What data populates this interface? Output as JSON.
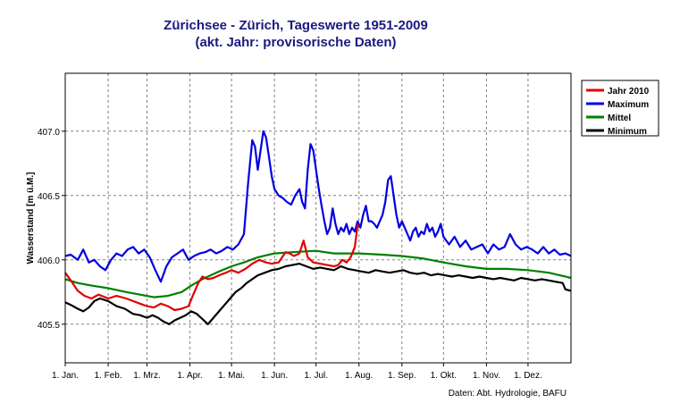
{
  "chart_data": {
    "type": "line",
    "title": "Zürichsee - Zürich, Tageswerte 1951-2009",
    "subtitle": "(akt. Jahr: provisorische Daten)",
    "xlabel": "",
    "ylabel": "Wasserstand [m ü.M.]",
    "ylim": [
      405.2,
      407.45
    ],
    "yticks": [
      405.5,
      406.0,
      406.5,
      407.0
    ],
    "ytick_labels": [
      "405.5",
      "406.0",
      "406.5",
      "407.0"
    ],
    "xlim": [
      1,
      366
    ],
    "x_unit": "day of year",
    "xticks": [
      1,
      32,
      60,
      91,
      121,
      152,
      182,
      213,
      244,
      274,
      305,
      335
    ],
    "xtick_labels": [
      "1. Jan.",
      "1. Feb.",
      "1. Mrz.",
      "1. Apr.",
      "1. Mai.",
      "1. Jun.",
      "1. Jul.",
      "1. Aug.",
      "1. Sep.",
      "1. Okt.",
      "1. Nov.",
      "1. Dez."
    ],
    "grid": true,
    "legend_position": "right",
    "source_note": "Daten: Abt. Hydrologie, BAFU",
    "series": [
      {
        "name": "Jahr 2010",
        "color": "#e00000",
        "points": [
          [
            1,
            405.9
          ],
          [
            5,
            405.84
          ],
          [
            10,
            405.76
          ],
          [
            15,
            405.72
          ],
          [
            20,
            405.7
          ],
          [
            25,
            405.73
          ],
          [
            32,
            405.7
          ],
          [
            38,
            405.72
          ],
          [
            45,
            405.7
          ],
          [
            50,
            405.68
          ],
          [
            55,
            405.66
          ],
          [
            60,
            405.64
          ],
          [
            65,
            405.63
          ],
          [
            70,
            405.66
          ],
          [
            75,
            405.64
          ],
          [
            80,
            405.61
          ],
          [
            85,
            405.62
          ],
          [
            90,
            405.64
          ],
          [
            93,
            405.72
          ],
          [
            97,
            405.82
          ],
          [
            100,
            405.87
          ],
          [
            104,
            405.85
          ],
          [
            108,
            405.86
          ],
          [
            112,
            405.88
          ],
          [
            117,
            405.9
          ],
          [
            121,
            405.92
          ],
          [
            126,
            405.9
          ],
          [
            131,
            405.93
          ],
          [
            136,
            405.97
          ],
          [
            141,
            406.0
          ],
          [
            146,
            405.98
          ],
          [
            150,
            405.97
          ],
          [
            155,
            405.98
          ],
          [
            160,
            406.06
          ],
          [
            163,
            406.05
          ],
          [
            166,
            406.03
          ],
          [
            170,
            406.05
          ],
          [
            173,
            406.15
          ],
          [
            176,
            406.02
          ],
          [
            180,
            405.98
          ],
          [
            185,
            405.97
          ],
          [
            190,
            405.96
          ],
          [
            195,
            405.95
          ],
          [
            198,
            405.96
          ],
          [
            201,
            406.0
          ],
          [
            204,
            405.98
          ],
          [
            207,
            406.02
          ],
          [
            210,
            406.1
          ],
          [
            212,
            406.27
          ],
          [
            213,
            406.25
          ]
        ]
      },
      {
        "name": "Maximum",
        "color": "#0000e0",
        "points": [
          [
            1,
            406.03
          ],
          [
            5,
            406.04
          ],
          [
            10,
            406.0
          ],
          [
            14,
            406.08
          ],
          [
            18,
            405.98
          ],
          [
            22,
            406.0
          ],
          [
            26,
            405.95
          ],
          [
            30,
            405.92
          ],
          [
            34,
            406.0
          ],
          [
            38,
            406.05
          ],
          [
            42,
            406.03
          ],
          [
            46,
            406.08
          ],
          [
            50,
            406.1
          ],
          [
            54,
            406.05
          ],
          [
            58,
            406.08
          ],
          [
            62,
            406.02
          ],
          [
            66,
            405.92
          ],
          [
            70,
            405.83
          ],
          [
            74,
            405.95
          ],
          [
            78,
            406.02
          ],
          [
            82,
            406.05
          ],
          [
            86,
            406.08
          ],
          [
            90,
            406.0
          ],
          [
            94,
            406.03
          ],
          [
            98,
            406.05
          ],
          [
            102,
            406.06
          ],
          [
            106,
            406.08
          ],
          [
            110,
            406.05
          ],
          [
            114,
            406.07
          ],
          [
            118,
            406.1
          ],
          [
            122,
            406.08
          ],
          [
            126,
            406.12
          ],
          [
            130,
            406.2
          ],
          [
            133,
            406.6
          ],
          [
            136,
            406.93
          ],
          [
            138,
            406.88
          ],
          [
            140,
            406.7
          ],
          [
            142,
            406.85
          ],
          [
            144,
            407.0
          ],
          [
            146,
            406.95
          ],
          [
            148,
            406.8
          ],
          [
            150,
            406.65
          ],
          [
            152,
            406.55
          ],
          [
            155,
            406.5
          ],
          [
            158,
            406.48
          ],
          [
            161,
            406.45
          ],
          [
            164,
            406.43
          ],
          [
            167,
            406.5
          ],
          [
            170,
            406.55
          ],
          [
            172,
            406.45
          ],
          [
            174,
            406.4
          ],
          [
            176,
            406.7
          ],
          [
            178,
            406.9
          ],
          [
            180,
            406.85
          ],
          [
            182,
            406.7
          ],
          [
            184,
            406.55
          ],
          [
            186,
            406.42
          ],
          [
            188,
            406.3
          ],
          [
            190,
            406.2
          ],
          [
            192,
            406.25
          ],
          [
            194,
            406.4
          ],
          [
            196,
            406.28
          ],
          [
            198,
            406.2
          ],
          [
            200,
            406.25
          ],
          [
            202,
            406.22
          ],
          [
            204,
            406.28
          ],
          [
            206,
            406.2
          ],
          [
            208,
            406.25
          ],
          [
            210,
            406.22
          ],
          [
            212,
            406.3
          ],
          [
            214,
            406.25
          ],
          [
            216,
            406.35
          ],
          [
            218,
            406.42
          ],
          [
            220,
            406.3
          ],
          [
            222,
            406.3
          ],
          [
            224,
            406.28
          ],
          [
            226,
            406.25
          ],
          [
            228,
            406.3
          ],
          [
            230,
            406.35
          ],
          [
            232,
            406.45
          ],
          [
            234,
            406.62
          ],
          [
            236,
            406.65
          ],
          [
            238,
            406.5
          ],
          [
            240,
            406.35
          ],
          [
            242,
            406.25
          ],
          [
            244,
            406.3
          ],
          [
            246,
            406.25
          ],
          [
            248,
            406.2
          ],
          [
            250,
            406.15
          ],
          [
            252,
            406.22
          ],
          [
            254,
            406.25
          ],
          [
            256,
            406.18
          ],
          [
            258,
            406.22
          ],
          [
            260,
            406.2
          ],
          [
            262,
            406.28
          ],
          [
            264,
            406.22
          ],
          [
            266,
            406.25
          ],
          [
            268,
            406.18
          ],
          [
            270,
            406.22
          ],
          [
            272,
            406.28
          ],
          [
            274,
            406.18
          ],
          [
            278,
            406.12
          ],
          [
            282,
            406.18
          ],
          [
            286,
            406.1
          ],
          [
            290,
            406.15
          ],
          [
            294,
            406.08
          ],
          [
            298,
            406.1
          ],
          [
            302,
            406.12
          ],
          [
            306,
            406.05
          ],
          [
            310,
            406.12
          ],
          [
            314,
            406.08
          ],
          [
            318,
            406.1
          ],
          [
            322,
            406.2
          ],
          [
            326,
            406.12
          ],
          [
            330,
            406.08
          ],
          [
            334,
            406.1
          ],
          [
            338,
            406.08
          ],
          [
            342,
            406.05
          ],
          [
            346,
            406.1
          ],
          [
            350,
            406.05
          ],
          [
            354,
            406.08
          ],
          [
            358,
            406.04
          ],
          [
            362,
            406.05
          ],
          [
            366,
            406.03
          ]
        ]
      },
      {
        "name": "Mittel",
        "color": "#008000",
        "points": [
          [
            1,
            405.85
          ],
          [
            10,
            405.82
          ],
          [
            20,
            405.8
          ],
          [
            32,
            405.78
          ],
          [
            45,
            405.75
          ],
          [
            55,
            405.73
          ],
          [
            65,
            405.71
          ],
          [
            75,
            405.72
          ],
          [
            85,
            405.75
          ],
          [
            92,
            405.8
          ],
          [
            100,
            405.85
          ],
          [
            110,
            405.9
          ],
          [
            121,
            405.95
          ],
          [
            130,
            405.98
          ],
          [
            140,
            406.02
          ],
          [
            152,
            406.05
          ],
          [
            165,
            406.06
          ],
          [
            182,
            406.07
          ],
          [
            195,
            406.05
          ],
          [
            213,
            406.05
          ],
          [
            230,
            406.04
          ],
          [
            244,
            406.03
          ],
          [
            260,
            406.01
          ],
          [
            274,
            405.98
          ],
          [
            290,
            405.95
          ],
          [
            305,
            405.93
          ],
          [
            320,
            405.93
          ],
          [
            335,
            405.92
          ],
          [
            350,
            405.9
          ],
          [
            366,
            405.86
          ]
        ]
      },
      {
        "name": "Minimum",
        "color": "#000000",
        "points": [
          [
            1,
            405.67
          ],
          [
            5,
            405.65
          ],
          [
            10,
            405.62
          ],
          [
            14,
            405.6
          ],
          [
            18,
            405.63
          ],
          [
            22,
            405.68
          ],
          [
            26,
            405.7
          ],
          [
            32,
            405.68
          ],
          [
            38,
            405.64
          ],
          [
            44,
            405.62
          ],
          [
            50,
            405.58
          ],
          [
            55,
            405.57
          ],
          [
            60,
            405.55
          ],
          [
            64,
            405.57
          ],
          [
            68,
            405.55
          ],
          [
            72,
            405.52
          ],
          [
            76,
            405.5
          ],
          [
            80,
            405.53
          ],
          [
            84,
            405.55
          ],
          [
            88,
            405.57
          ],
          [
            92,
            405.6
          ],
          [
            96,
            405.58
          ],
          [
            100,
            405.54
          ],
          [
            104,
            405.5
          ],
          [
            108,
            405.55
          ],
          [
            112,
            405.6
          ],
          [
            116,
            405.65
          ],
          [
            120,
            405.7
          ],
          [
            124,
            405.75
          ],
          [
            128,
            405.78
          ],
          [
            132,
            405.82
          ],
          [
            136,
            405.85
          ],
          [
            140,
            405.88
          ],
          [
            145,
            405.9
          ],
          [
            150,
            405.92
          ],
          [
            155,
            405.93
          ],
          [
            160,
            405.95
          ],
          [
            165,
            405.96
          ],
          [
            170,
            405.97
          ],
          [
            175,
            405.95
          ],
          [
            180,
            405.93
          ],
          [
            185,
            405.94
          ],
          [
            190,
            405.93
          ],
          [
            195,
            405.92
          ],
          [
            200,
            405.95
          ],
          [
            205,
            405.93
          ],
          [
            210,
            405.92
          ],
          [
            215,
            405.91
          ],
          [
            220,
            405.9
          ],
          [
            225,
            405.92
          ],
          [
            230,
            405.91
          ],
          [
            235,
            405.9
          ],
          [
            240,
            405.91
          ],
          [
            245,
            405.92
          ],
          [
            250,
            405.9
          ],
          [
            255,
            405.89
          ],
          [
            260,
            405.9
          ],
          [
            265,
            405.88
          ],
          [
            270,
            405.89
          ],
          [
            275,
            405.88
          ],
          [
            280,
            405.87
          ],
          [
            285,
            405.88
          ],
          [
            290,
            405.87
          ],
          [
            295,
            405.86
          ],
          [
            300,
            405.87
          ],
          [
            305,
            405.86
          ],
          [
            310,
            405.85
          ],
          [
            315,
            405.86
          ],
          [
            320,
            405.85
          ],
          [
            325,
            405.84
          ],
          [
            330,
            405.86
          ],
          [
            335,
            405.85
          ],
          [
            340,
            405.84
          ],
          [
            345,
            405.85
          ],
          [
            350,
            405.84
          ],
          [
            355,
            405.83
          ],
          [
            360,
            405.82
          ],
          [
            362,
            405.77
          ],
          [
            366,
            405.76
          ]
        ]
      }
    ]
  }
}
